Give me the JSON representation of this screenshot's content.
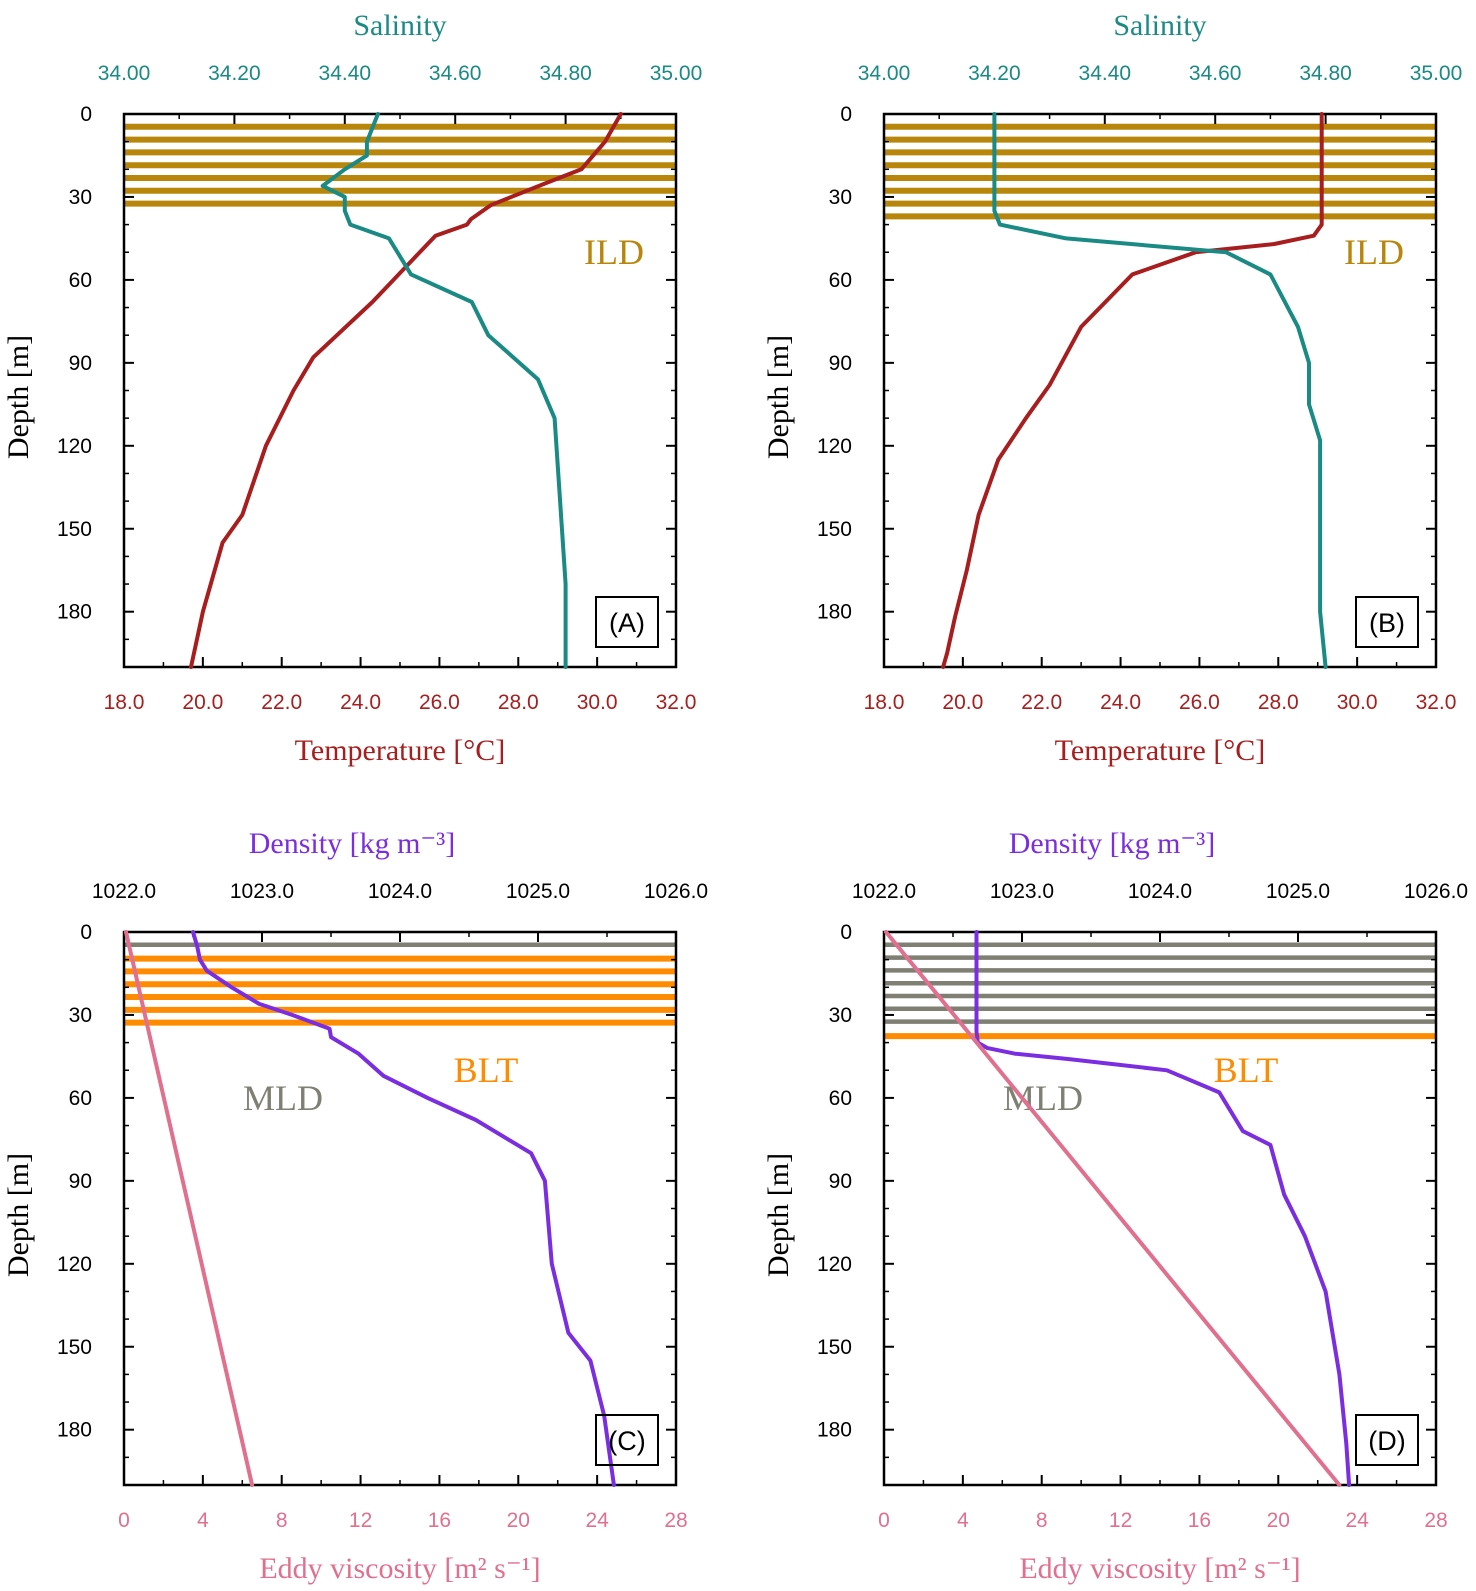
{
  "colors": {
    "temperature": "#a81e1e",
    "salinity": "#1a8a84",
    "density": "#7b2ee0",
    "eddy": "#e0708e",
    "ild_band": "#b8860b",
    "mld_band": "#7f7f74",
    "blt_band": "#ff8c00",
    "axis": "#000000"
  },
  "chart_data": [
    {
      "type": "line",
      "panel": "(A)",
      "ylabel": "Depth [m]",
      "ylim": [
        200,
        0
      ],
      "yticks": [
        0,
        30,
        60,
        90,
        120,
        150,
        180
      ],
      "bottom_axis": {
        "title": "Temperature [°C]",
        "lim": [
          18,
          32
        ],
        "ticks": [
          "18.0",
          "20.0",
          "22.0",
          "24.0",
          "26.0",
          "28.0",
          "30.0",
          "32.0"
        ]
      },
      "top_axis": {
        "title": "Salinity",
        "lim": [
          34.0,
          35.0
        ],
        "ticks": [
          "34.00",
          "34.20",
          "34.40",
          "34.60",
          "34.80",
          "35.00"
        ]
      },
      "bands": [
        {
          "name": "ILD",
          "kind": "ild",
          "depth_range": [
            0,
            36
          ],
          "label": "ILD",
          "label_pos": "right-upper"
        }
      ],
      "series": [
        {
          "name": "Temperature",
          "axis": "bottom",
          "color_key": "temperature",
          "x": [
            30.6,
            30.2,
            29.6,
            28.7,
            27.3,
            26.8,
            26.7,
            25.9,
            24.3,
            22.8,
            22.3,
            21.6,
            21.0,
            20.5,
            20.0,
            19.7
          ],
          "y": [
            0,
            10,
            20,
            25,
            33,
            38,
            40,
            44,
            68,
            88,
            100,
            120,
            145,
            155,
            180,
            200
          ]
        },
        {
          "name": "Salinity",
          "axis": "top",
          "color_key": "salinity",
          "x": [
            34.46,
            34.44,
            34.44,
            34.4,
            34.36,
            34.4,
            34.4,
            34.41,
            34.48,
            34.52,
            34.63,
            34.66,
            34.75,
            34.78,
            34.79,
            34.8,
            34.8
          ],
          "y": [
            0,
            10,
            15,
            20,
            26,
            30,
            35,
            40,
            45,
            58,
            68,
            80,
            96,
            110,
            140,
            170,
            200
          ]
        }
      ]
    },
    {
      "type": "line",
      "panel": "(B)",
      "ylabel": "Depth [m]",
      "ylim": [
        200,
        0
      ],
      "yticks": [
        0,
        30,
        60,
        90,
        120,
        150,
        180
      ],
      "bottom_axis": {
        "title": "Temperature [°C]",
        "lim": [
          18,
          32
        ],
        "ticks": [
          "18.0",
          "20.0",
          "22.0",
          "24.0",
          "26.0",
          "28.0",
          "30.0",
          "32.0"
        ]
      },
      "top_axis": {
        "title": "Salinity",
        "lim": [
          34.0,
          35.0
        ],
        "ticks": [
          "34.00",
          "34.20",
          "34.40",
          "34.60",
          "34.80",
          "35.00"
        ]
      },
      "bands": [
        {
          "name": "ILD",
          "kind": "ild",
          "depth_range": [
            0,
            38
          ],
          "label": "ILD",
          "label_pos": "right-upper"
        }
      ],
      "series": [
        {
          "name": "Temperature",
          "axis": "bottom",
          "color_key": "temperature",
          "x": [
            29.1,
            29.1,
            29.1,
            28.9,
            27.9,
            25.9,
            24.3,
            23.0,
            22.2,
            21.6,
            20.9,
            20.4,
            20.1,
            19.8,
            19.6,
            19.5
          ],
          "y": [
            0,
            20,
            40,
            44,
            47,
            50,
            58,
            77,
            98,
            110,
            125,
            145,
            165,
            182,
            195,
            200
          ]
        },
        {
          "name": "Salinity",
          "axis": "top",
          "color_key": "salinity",
          "x": [
            34.2,
            34.2,
            34.2,
            34.21,
            34.33,
            34.62,
            34.7,
            34.75,
            34.77,
            34.77,
            34.79,
            34.79,
            34.79,
            34.79,
            34.8
          ],
          "y": [
            0,
            20,
            35,
            40,
            45,
            50,
            58,
            77,
            90,
            105,
            118,
            140,
            160,
            180,
            200
          ]
        }
      ]
    },
    {
      "type": "line",
      "panel": "(C)",
      "ylabel": "Depth [m]",
      "ylim": [
        200,
        0
      ],
      "yticks": [
        0,
        30,
        60,
        90,
        120,
        150,
        180
      ],
      "bottom_axis": {
        "title": "Eddy viscosity [m² s⁻¹]",
        "lim": [
          0,
          28
        ],
        "ticks": [
          "0",
          "4",
          "8",
          "12",
          "16",
          "20",
          "24",
          "28"
        ]
      },
      "top_axis": {
        "title": "Density [kg m⁻³]",
        "lim": [
          1022.0,
          1026.0
        ],
        "ticks": [
          "1022.0",
          "1023.0",
          "1024.0",
          "1025.0",
          "1026.0"
        ]
      },
      "bands": [
        {
          "name": "MLD",
          "kind": "mld",
          "depth_range": [
            0,
            5
          ],
          "label": "MLD",
          "label_pos": "left-mid"
        },
        {
          "name": "BLT",
          "kind": "blt",
          "depth_range": [
            5,
            36
          ],
          "label": "BLT",
          "label_pos": "right-upper"
        }
      ],
      "series": [
        {
          "name": "Density",
          "axis": "top",
          "color_key": "density",
          "x": [
            1022.5,
            1022.53,
            1022.55,
            1022.6,
            1022.78,
            1022.98,
            1023.22,
            1023.49,
            1023.5,
            1023.7,
            1023.88,
            1024.2,
            1024.55,
            1024.95,
            1025.05,
            1025.1,
            1025.22,
            1025.38,
            1025.48,
            1025.55
          ],
          "y": [
            0,
            5,
            10,
            14,
            20,
            26,
            30,
            35,
            38,
            44,
            52,
            60,
            68,
            80,
            90,
            120,
            145,
            155,
            175,
            200
          ]
        },
        {
          "name": "Eddy viscosity",
          "axis": "bottom",
          "color_key": "eddy",
          "x": [
            0.1,
            6.5
          ],
          "y": [
            0,
            200
          ]
        }
      ]
    },
    {
      "type": "line",
      "panel": "(D)",
      "ylabel": "Depth [m]",
      "ylim": [
        200,
        0
      ],
      "yticks": [
        0,
        30,
        60,
        90,
        120,
        150,
        180
      ],
      "bottom_axis": {
        "title": "Eddy viscosity [m² s⁻¹]",
        "lim": [
          0,
          28
        ],
        "ticks": [
          "0",
          "4",
          "8",
          "12",
          "16",
          "20",
          "24",
          "28"
        ]
      },
      "top_axis": {
        "title": "Density [kg m⁻³]",
        "lim": [
          1022.0,
          1026.0
        ],
        "ticks": [
          "1022.0",
          "1023.0",
          "1024.0",
          "1025.0",
          "1026.0"
        ]
      },
      "bands": [
        {
          "name": "MLD",
          "kind": "mld",
          "depth_range": [
            0,
            34
          ],
          "label": "MLD",
          "label_pos": "left-mid"
        },
        {
          "name": "BLT",
          "kind": "blt",
          "depth_range": [
            34,
            38
          ],
          "label": "BLT",
          "label_pos": "right-upper"
        }
      ],
      "series": [
        {
          "name": "Density",
          "axis": "top",
          "color_key": "density",
          "x": [
            1022.67,
            1022.67,
            1022.67,
            1022.68,
            1022.75,
            1022.95,
            1023.35,
            1024.05,
            1024.43,
            1024.6,
            1024.8,
            1024.9,
            1025.05,
            1025.2,
            1025.3,
            1025.35,
            1025.37
          ],
          "y": [
            0,
            20,
            36,
            40,
            42,
            44,
            46,
            50,
            58,
            72,
            77,
            95,
            110,
            130,
            160,
            185,
            200
          ]
        },
        {
          "name": "Eddy viscosity",
          "axis": "bottom",
          "color_key": "eddy",
          "x": [
            0.1,
            23.1
          ],
          "y": [
            0,
            200
          ]
        }
      ]
    }
  ]
}
